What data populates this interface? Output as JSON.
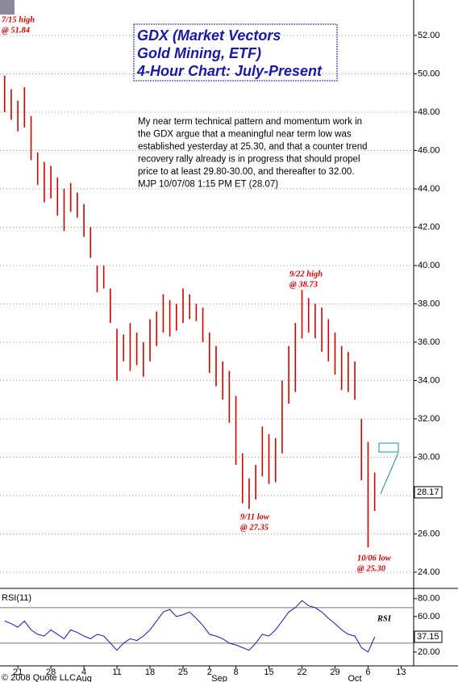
{
  "chart_data": [
    {
      "type": "hilo",
      "title_lines": [
        "GDX (Market Vectors",
        "Gold Mining, ETF)",
        "4-Hour Chart: July-Present"
      ],
      "commentary": [
        "My near term technical pattern and momentum work in",
        "the GDX argue that a meaningful near term low was",
        "established yesterday at 25.30, and that a counter trend",
        "recovery rally already is in progress that should propel",
        "price to at least 29.80-30.00, and thereafter to 32.00.",
        "MJP  10/07/08  1:15 PM ET  (28.07)"
      ],
      "annotations": [
        [
          "7/15 high",
          "@ 51.84"
        ],
        [
          "9/22 high",
          "@ 38.73"
        ],
        [
          "9/11 low",
          "@ 27.35"
        ],
        [
          "10/06 low",
          "@ 25.30"
        ]
      ],
      "color": "#cc0000",
      "x": [
        3,
        4,
        5,
        6,
        7,
        8,
        9,
        10,
        11,
        12,
        13,
        14,
        15,
        16,
        17,
        18,
        19,
        20,
        21,
        22,
        23,
        24,
        25,
        26,
        27,
        28,
        29,
        30,
        31,
        32,
        33,
        34,
        35,
        36,
        37,
        38,
        39,
        40,
        41,
        42,
        43,
        44,
        45,
        46,
        47,
        48,
        49,
        50,
        51,
        52,
        53,
        54,
        55,
        56,
        57,
        58,
        59
      ],
      "high": [
        49.9,
        49.2,
        48.6,
        49.3,
        47.8,
        45.9,
        45.4,
        45.2,
        44.6,
        44.0,
        44.3,
        43.8,
        43.2,
        42.0,
        40.0,
        40.0,
        38.8,
        36.7,
        36.4,
        37.0,
        36.5,
        36.0,
        37.2,
        37.6,
        38.5,
        38.2,
        38.0,
        38.8,
        38.5,
        38.0,
        37.8,
        36.5,
        35.8,
        35.0,
        34.5,
        33.2,
        30.2,
        28.9,
        29.6,
        31.6,
        31.2,
        31.0,
        34.0,
        35.8,
        37.0,
        38.73,
        38.3,
        38.0,
        37.8,
        37.2,
        36.5,
        35.8,
        35.5,
        35.0,
        32.0,
        30.8,
        29.2
      ],
      "low": [
        48.0,
        47.6,
        47.0,
        47.2,
        45.5,
        44.2,
        43.3,
        43.5,
        42.6,
        41.8,
        42.8,
        42.5,
        41.5,
        40.4,
        38.6,
        38.8,
        37.0,
        34.0,
        35.0,
        34.5,
        34.8,
        34.2,
        35.0,
        35.8,
        36.5,
        36.3,
        36.6,
        37.0,
        37.2,
        37.1,
        36.0,
        34.4,
        33.7,
        33.0,
        31.8,
        29.6,
        27.6,
        27.3,
        27.8,
        29.0,
        28.6,
        28.7,
        30.2,
        32.8,
        33.4,
        36.2,
        36.5,
        36.2,
        35.5,
        35.0,
        34.3,
        33.5,
        33.4,
        33.0,
        28.8,
        25.3,
        27.2
      ],
      "last_value": 28.17,
      "last_label": "28.17",
      "xlim": [
        2.3,
        64.9
      ],
      "ylim": [
        23.2,
        53.85
      ],
      "yticks": [
        {
          "value": 24,
          "label": "24.00"
        },
        {
          "value": 26,
          "label": "26.00"
        },
        {
          "value": 28,
          "label": "28.00"
        },
        {
          "value": 30,
          "label": "30.00"
        },
        {
          "value": 32,
          "label": "32.00"
        },
        {
          "value": 34,
          "label": "34.00"
        },
        {
          "value": 36,
          "label": "36.00"
        },
        {
          "value": 38,
          "label": "38.00"
        },
        {
          "value": 40,
          "label": "40.00"
        },
        {
          "value": 42,
          "label": "42.00"
        },
        {
          "value": 44,
          "label": "44.00"
        },
        {
          "value": 46,
          "label": "46.00"
        },
        {
          "value": 48,
          "label": "48.00"
        },
        {
          "value": 50,
          "label": "50.00"
        },
        {
          "value": 52,
          "label": "52.00"
        }
      ],
      "grid": true
    },
    {
      "type": "line",
      "label": "RSI(11)",
      "series_tag": "RSI",
      "color": "#1a1aaa",
      "x": [
        3,
        4,
        5,
        6,
        7,
        8,
        9,
        10,
        11,
        12,
        13,
        14,
        15,
        16,
        17,
        18,
        19,
        20,
        21,
        22,
        23,
        24,
        25,
        26,
        27,
        28,
        29,
        30,
        31,
        32,
        33,
        34,
        35,
        36,
        37,
        38,
        39,
        40,
        41,
        42,
        43,
        44,
        45,
        46,
        47,
        48,
        49,
        50,
        51,
        52,
        53,
        54,
        55,
        56,
        57,
        58,
        59
      ],
      "values": [
        55,
        52,
        48,
        55,
        45,
        40,
        38,
        45,
        40,
        35,
        45,
        42,
        38,
        35,
        40,
        38,
        30,
        22,
        30,
        35,
        33,
        38,
        45,
        55,
        65,
        68,
        60,
        62,
        65,
        58,
        50,
        40,
        38,
        35,
        30,
        28,
        25,
        22,
        30,
        40,
        38,
        45,
        55,
        65,
        70,
        78,
        72,
        70,
        65,
        58,
        52,
        45,
        40,
        38,
        25,
        20,
        37.15
      ],
      "last_label": "37.15",
      "reference_lines": [
        30,
        70
      ],
      "xlim": [
        2.3,
        64.9
      ],
      "ylim": [
        4.5,
        88
      ],
      "yticks": [
        {
          "value": 20,
          "label": "20.00"
        },
        {
          "value": 40,
          "label": "40.00"
        },
        {
          "value": 60,
          "label": "60.00"
        },
        {
          "value": 80,
          "label": "80.00"
        }
      ],
      "xticks": [
        5,
        10,
        15,
        20,
        25,
        30,
        34,
        38,
        43,
        48,
        53,
        58,
        63
      ],
      "xtick_labels": [
        "21",
        "28",
        "4",
        "11",
        "18",
        "25",
        "2",
        "8",
        "15",
        "22",
        "29",
        "6",
        "13"
      ],
      "month_ticks": [
        {
          "value": 15,
          "label": "Aug"
        },
        {
          "value": 35.5,
          "label": "Sep"
        },
        {
          "value": 56,
          "label": "Oct"
        }
      ],
      "copyright": "© 2008 Quote LLC"
    }
  ]
}
